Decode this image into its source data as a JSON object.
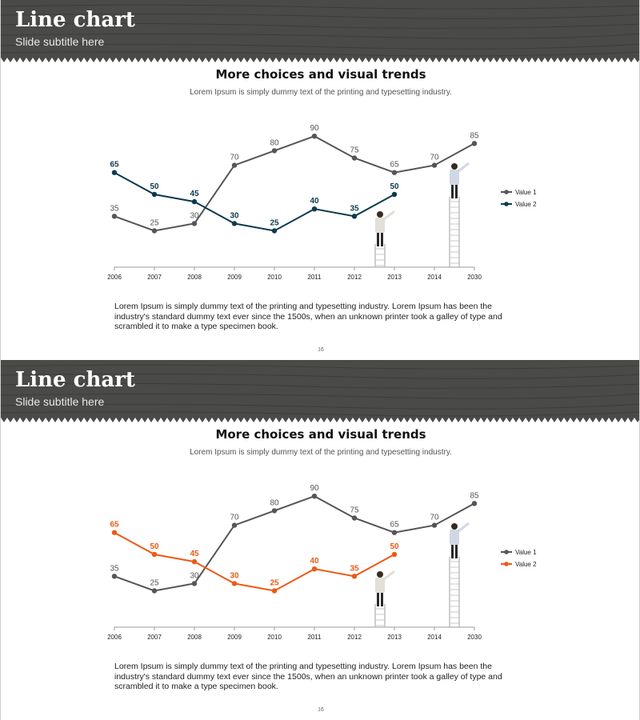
{
  "slides": [
    {
      "title": "Line chart",
      "subtitle": "Slide subtitle here",
      "heading": "More choices and visual trends",
      "lead": "Lorem Ipsum is simply dummy text of the printing and typesetting industry.",
      "body": "Lorem Ipsum is simply dummy text of the printing and typesetting industry. Lorem Ipsum has been the industry's standard dummy text ever since the 1500s, when an unknown printer took a galley of type and scrambled it to make a type specimen book.",
      "page_number": "16"
    },
    {
      "title": "Line chart",
      "subtitle": "Slide subtitle here",
      "heading": "More choices and visual trends",
      "lead": "Lorem Ipsum is simply dummy text of the printing and typesetting industry.",
      "body": "Lorem Ipsum is simply dummy text of the printing and typesetting industry. Lorem Ipsum has been the industry's standard dummy text ever since the 1500s, when an unknown printer took a galley of type and scrambled it to make a type specimen book.",
      "page_number": "16"
    }
  ],
  "colors": {
    "banner_wood": "#4a4a48",
    "value1": "#555555",
    "value2_slide1": "#0b3a4f",
    "value2_slide2": "#ec5a16"
  },
  "chart_data": [
    {
      "type": "line",
      "categories": [
        "2006",
        "2007",
        "2008",
        "2009",
        "2010",
        "2011",
        "2012",
        "2013",
        "2014",
        "2030"
      ],
      "series": [
        {
          "name": "Value 1",
          "values": [
            35,
            25,
            30,
            70,
            80,
            90,
            75,
            65,
            70,
            85
          ],
          "color": "#555555"
        },
        {
          "name": "Value 2",
          "values": [
            65,
            50,
            45,
            30,
            25,
            40,
            35,
            50,
            null,
            null
          ],
          "color": "#0b3a4f"
        }
      ],
      "legend": "right",
      "grid": false
    },
    {
      "type": "line",
      "categories": [
        "2006",
        "2007",
        "2008",
        "2009",
        "2010",
        "2011",
        "2012",
        "2013",
        "2014",
        "2030"
      ],
      "series": [
        {
          "name": "Value 1",
          "values": [
            35,
            25,
            30,
            70,
            80,
            90,
            75,
            65,
            70,
            85
          ],
          "color": "#555555"
        },
        {
          "name": "Value 2",
          "values": [
            65,
            50,
            45,
            30,
            25,
            40,
            35,
            50,
            null,
            null
          ],
          "color": "#ec5a16"
        }
      ],
      "legend": "right",
      "grid": false
    }
  ]
}
